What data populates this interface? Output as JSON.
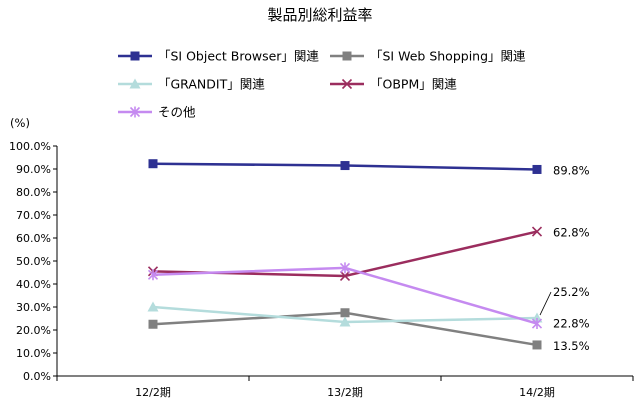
{
  "chart_data": {
    "type": "line",
    "title": "製品別総利益率",
    "unit_label": "(%)",
    "xlabel": "",
    "ylabel": "",
    "categories": [
      "12/2期",
      "13/2期",
      "14/2期"
    ],
    "ylim": [
      0,
      100
    ],
    "yticks": [
      "0.0%",
      "10.0%",
      "20.0%",
      "30.0%",
      "40.0%",
      "50.0%",
      "60.0%",
      "70.0%",
      "80.0%",
      "90.0%",
      "100.0%"
    ],
    "legend_position": "top",
    "grid": false,
    "series": [
      {
        "name": "「SI Object Browser」関連",
        "values": [
          92.3,
          91.5,
          89.8
        ],
        "color": "#2e3192",
        "marker": "square",
        "labels": [
          "",
          "",
          "89.8%"
        ]
      },
      {
        "name": "「SI Web Shopping」関連",
        "values": [
          22.5,
          27.5,
          13.5
        ],
        "color": "#808080",
        "marker": "square",
        "labels": [
          "",
          "",
          "13.5%"
        ]
      },
      {
        "name": "「GRANDIT」関連",
        "values": [
          30.0,
          23.5,
          25.2
        ],
        "color": "#b4dcdc",
        "marker": "triangle",
        "labels": [
          "",
          "",
          "25.2%"
        ]
      },
      {
        "name": "「OBPM」関連",
        "values": [
          45.5,
          43.5,
          62.8
        ],
        "color": "#9b2d5e",
        "marker": "x",
        "labels": [
          "",
          "",
          "62.8%"
        ]
      },
      {
        "name": "その他",
        "values": [
          44.0,
          47.0,
          22.8
        ],
        "color": "#c58af0",
        "marker": "star",
        "labels": [
          "",
          "",
          "22.8%"
        ]
      }
    ]
  }
}
